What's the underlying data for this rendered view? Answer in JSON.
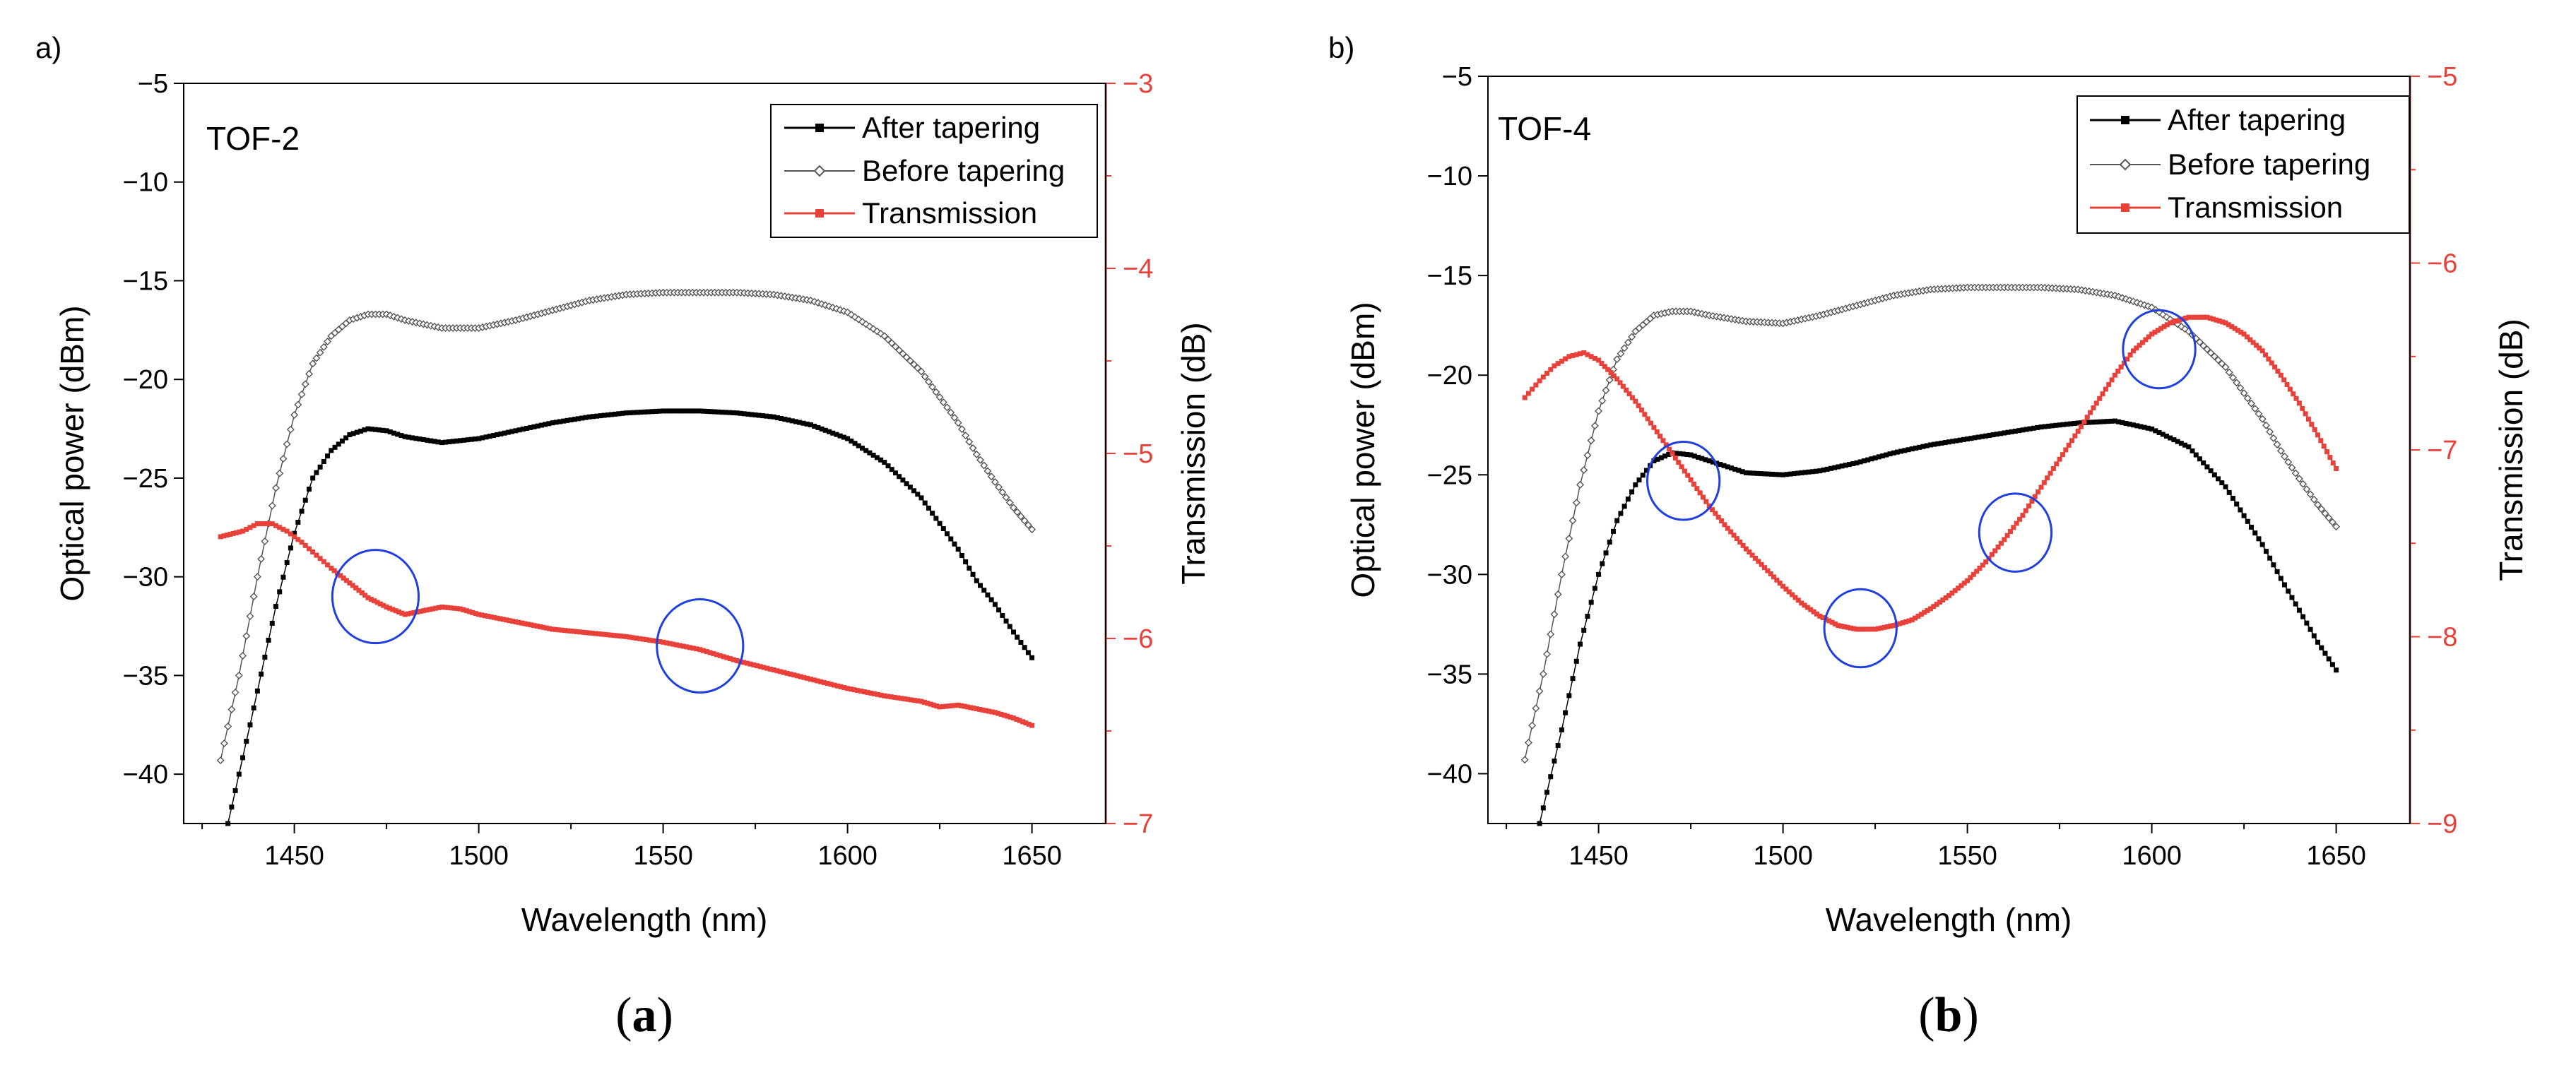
{
  "colors": {
    "after_tapering": "#000000",
    "before_tapering": "#555555",
    "transmission": "#e8413a",
    "circles": "#1f3fe0",
    "axis": "#000000",
    "right_axis": "#e8413a"
  },
  "panels": [
    {
      "panel_tag": "a)",
      "caption_letter": "a",
      "inset_label": "TOF-2",
      "legend": [
        "After tapering",
        "Before tapering",
        "Transmission"
      ]
    },
    {
      "panel_tag": "b)",
      "caption_letter": "b",
      "inset_label": "TOF-4",
      "legend": [
        "After tapering",
        "Before tapering",
        "Transmission"
      ]
    }
  ],
  "chart_data": [
    {
      "type": "line",
      "title": "TOF-2",
      "xlabel": "Wavelength (nm)",
      "ylabel": "Optical power (dBm)",
      "y2label": "Transmission (dB)",
      "xlim": [
        1420,
        1670
      ],
      "ylim": [
        -42.5,
        -5
      ],
      "y2lim": [
        -7,
        -3
      ],
      "xticks": [
        1450,
        1500,
        1550,
        1600,
        1650
      ],
      "yticks": [
        -40,
        -35,
        -30,
        -25,
        -20,
        -15,
        -10,
        -5
      ],
      "y2ticks": [
        -7,
        -6,
        -5,
        -4,
        -3
      ],
      "legend_position": "top-right",
      "series": [
        {
          "name": "After tapering",
          "axis": "left",
          "marker": "filled-square",
          "x": [
            1432,
            1438,
            1445,
            1450,
            1455,
            1460,
            1465,
            1470,
            1475,
            1480,
            1490,
            1500,
            1510,
            1520,
            1530,
            1540,
            1550,
            1560,
            1570,
            1580,
            1590,
            1600,
            1610,
            1620,
            1630,
            1635,
            1640,
            1645,
            1650
          ],
          "y": [
            -42.5,
            -37.5,
            -31.5,
            -27.8,
            -25.0,
            -23.6,
            -22.8,
            -22.5,
            -22.6,
            -22.9,
            -23.2,
            -23.0,
            -22.6,
            -22.2,
            -21.9,
            -21.7,
            -21.6,
            -21.6,
            -21.7,
            -21.9,
            -22.3,
            -23.0,
            -24.2,
            -26.0,
            -28.6,
            -30.2,
            -31.4,
            -32.8,
            -34.1
          ]
        },
        {
          "name": "Before tapering",
          "axis": "left",
          "marker": "open-diamond",
          "x": [
            1430,
            1435,
            1440,
            1445,
            1450,
            1455,
            1460,
            1465,
            1470,
            1475,
            1480,
            1490,
            1500,
            1510,
            1520,
            1530,
            1540,
            1550,
            1560,
            1570,
            1580,
            1590,
            1600,
            1610,
            1620,
            1630,
            1635,
            1640,
            1645,
            1650
          ],
          "y": [
            -39.3,
            -35.0,
            -30.0,
            -25.5,
            -21.8,
            -19.2,
            -17.8,
            -17.0,
            -16.7,
            -16.7,
            -17.0,
            -17.4,
            -17.4,
            -17.0,
            -16.5,
            -16.0,
            -15.7,
            -15.6,
            -15.6,
            -15.6,
            -15.7,
            -16.0,
            -16.6,
            -17.8,
            -19.6,
            -22.2,
            -23.8,
            -25.2,
            -26.5,
            -27.6
          ]
        },
        {
          "name": "Transmission",
          "axis": "right",
          "marker": "filled-circle",
          "x": [
            1430,
            1436,
            1440,
            1444,
            1448,
            1452,
            1456,
            1460,
            1465,
            1470,
            1475,
            1480,
            1485,
            1490,
            1495,
            1500,
            1505,
            1510,
            1515,
            1520,
            1525,
            1530,
            1535,
            1540,
            1550,
            1560,
            1570,
            1580,
            1590,
            1600,
            1610,
            1620,
            1625,
            1630,
            1635,
            1640,
            1645,
            1650
          ],
          "y": [
            -5.45,
            -5.42,
            -5.38,
            -5.38,
            -5.42,
            -5.48,
            -5.55,
            -5.62,
            -5.7,
            -5.78,
            -5.83,
            -5.87,
            -5.85,
            -5.83,
            -5.84,
            -5.87,
            -5.89,
            -5.91,
            -5.93,
            -5.95,
            -5.96,
            -5.97,
            -5.98,
            -5.99,
            -6.02,
            -6.06,
            -6.12,
            -6.17,
            -6.22,
            -6.27,
            -6.31,
            -6.34,
            -6.37,
            -6.36,
            -6.38,
            -6.4,
            -6.43,
            -6.47
          ]
        }
      ],
      "annotations": [
        {
          "shape": "circle",
          "x": 1472,
          "y": -31.0,
          "radius_x": 11.7
        },
        {
          "shape": "circle",
          "x": 1560,
          "y": -33.5,
          "radius_x": 11.7
        }
      ]
    },
    {
      "type": "line",
      "title": "TOF-4",
      "xlabel": "Wavelength (nm)",
      "ylabel": "Optical power (dBm)",
      "y2label": "Transmission (dB)",
      "xlim": [
        1420,
        1670
      ],
      "ylim": [
        -42.5,
        -5
      ],
      "y2lim": [
        -9,
        -5
      ],
      "xticks": [
        1450,
        1500,
        1550,
        1600,
        1650
      ],
      "yticks": [
        -40,
        -35,
        -30,
        -25,
        -20,
        -15,
        -10,
        -5
      ],
      "y2ticks": [
        -9,
        -8,
        -7,
        -6,
        -5
      ],
      "legend_position": "top-right",
      "series": [
        {
          "name": "After tapering",
          "axis": "left",
          "marker": "filled-square",
          "x": [
            1434,
            1440,
            1445,
            1450,
            1455,
            1460,
            1465,
            1470,
            1475,
            1480,
            1490,
            1500,
            1510,
            1520,
            1530,
            1540,
            1550,
            1560,
            1570,
            1580,
            1590,
            1600,
            1610,
            1620,
            1630,
            1635,
            1640,
            1645,
            1650
          ],
          "y": [
            -42.5,
            -37.8,
            -33.5,
            -30.0,
            -27.3,
            -25.5,
            -24.3,
            -23.9,
            -24.0,
            -24.3,
            -24.9,
            -25.0,
            -24.8,
            -24.4,
            -23.9,
            -23.5,
            -23.2,
            -22.9,
            -22.6,
            -22.4,
            -22.3,
            -22.7,
            -23.6,
            -25.6,
            -28.5,
            -30.2,
            -31.8,
            -33.4,
            -34.8
          ]
        },
        {
          "name": "Before tapering",
          "axis": "left",
          "marker": "open-diamond",
          "x": [
            1430,
            1435,
            1440,
            1445,
            1450,
            1455,
            1460,
            1465,
            1470,
            1475,
            1480,
            1490,
            1500,
            1510,
            1520,
            1530,
            1540,
            1550,
            1560,
            1570,
            1580,
            1590,
            1600,
            1610,
            1620,
            1630,
            1635,
            1640,
            1645,
            1650
          ],
          "y": [
            -39.3,
            -35.0,
            -30.0,
            -25.5,
            -21.8,
            -19.2,
            -17.8,
            -17.0,
            -16.8,
            -16.8,
            -17.0,
            -17.3,
            -17.4,
            -17.0,
            -16.5,
            -16.0,
            -15.7,
            -15.6,
            -15.6,
            -15.6,
            -15.7,
            -16.0,
            -16.6,
            -17.8,
            -19.6,
            -22.2,
            -23.8,
            -25.2,
            -26.5,
            -27.6
          ]
        },
        {
          "name": "Transmission",
          "axis": "right",
          "marker": "filled-circle",
          "x": [
            1430,
            1434,
            1438,
            1442,
            1446,
            1450,
            1455,
            1460,
            1465,
            1470,
            1475,
            1480,
            1485,
            1490,
            1495,
            1500,
            1505,
            1510,
            1515,
            1520,
            1525,
            1530,
            1535,
            1540,
            1545,
            1550,
            1555,
            1560,
            1565,
            1570,
            1575,
            1580,
            1585,
            1590,
            1595,
            1600,
            1605,
            1610,
            1615,
            1620,
            1625,
            1630,
            1635,
            1640,
            1645,
            1650
          ],
          "y": [
            -6.72,
            -6.63,
            -6.55,
            -6.5,
            -6.48,
            -6.52,
            -6.62,
            -6.74,
            -6.88,
            -7.02,
            -7.16,
            -7.3,
            -7.42,
            -7.53,
            -7.63,
            -7.73,
            -7.82,
            -7.89,
            -7.94,
            -7.96,
            -7.96,
            -7.94,
            -7.91,
            -7.85,
            -7.78,
            -7.7,
            -7.6,
            -7.48,
            -7.35,
            -7.2,
            -7.05,
            -6.9,
            -6.75,
            -6.6,
            -6.47,
            -6.38,
            -6.32,
            -6.29,
            -6.29,
            -6.32,
            -6.38,
            -6.47,
            -6.6,
            -6.75,
            -6.92,
            -7.1
          ]
        }
      ],
      "annotations": [
        {
          "shape": "circle",
          "x": 1473,
          "y": -25.3,
          "radius_x": 9.8
        },
        {
          "shape": "circle",
          "x": 1521,
          "y": -32.7,
          "radius_x": 9.8
        },
        {
          "shape": "circle",
          "x": 1563,
          "y": -27.9,
          "radius_x": 9.8
        },
        {
          "shape": "circle",
          "x": 1602,
          "y": -18.7,
          "radius_x": 9.8
        }
      ]
    }
  ]
}
